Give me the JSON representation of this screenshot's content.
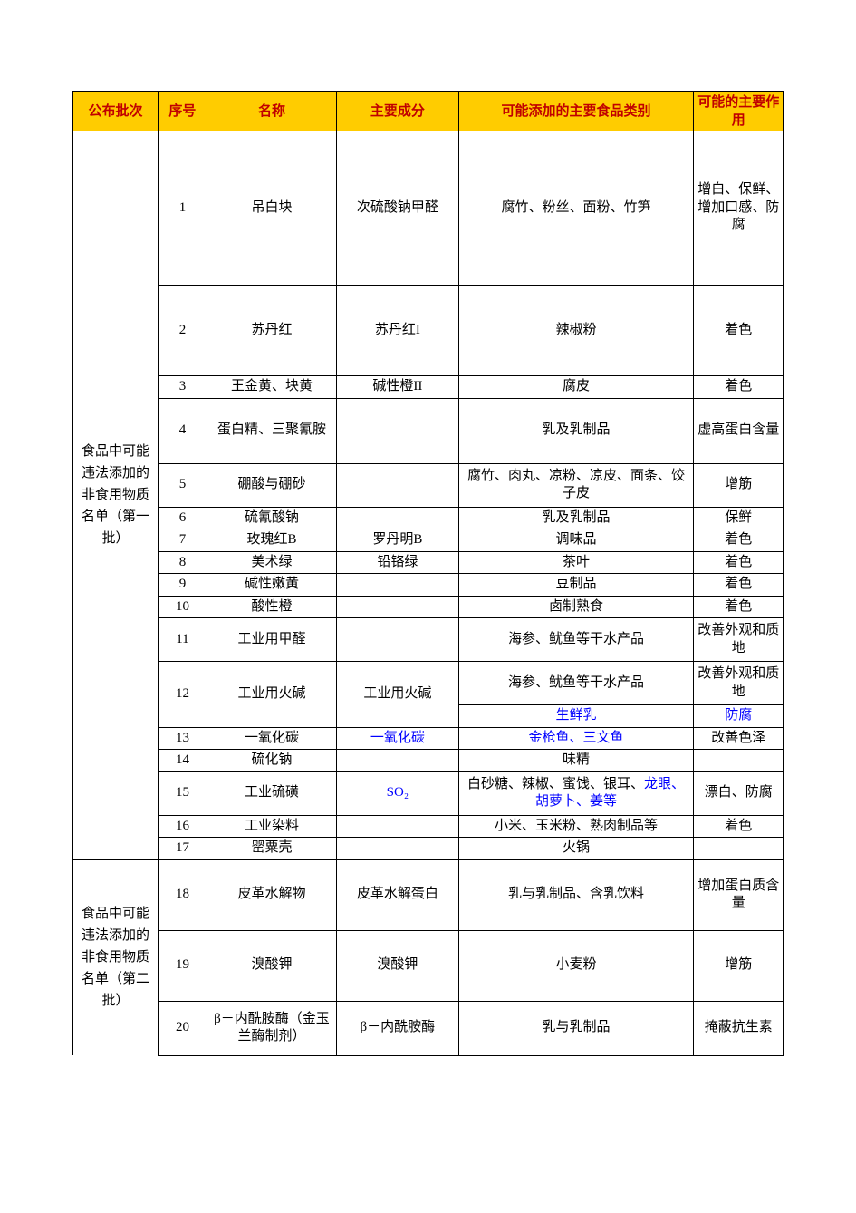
{
  "headers": {
    "batch": "公布批次",
    "num": "序号",
    "name": "名称",
    "component": "主要成分",
    "category": "可能添加的主要食品类别",
    "effect": "可能的主要作用"
  },
  "batch1_label": "食品中可能违法添加的非食用物质名单（第一批）",
  "batch2_label": "食品中可能违法添加的非食用物质名单（第二批）",
  "rows": {
    "r1": {
      "num": "1",
      "name": "吊白块",
      "comp": "次硫酸钠甲醛",
      "cat": "腐竹、粉丝、面粉、竹笋",
      "eff": "增白、保鲜、增加口感、防腐"
    },
    "r2": {
      "num": "2",
      "name": "苏丹红",
      "comp": "苏丹红I",
      "cat": "辣椒粉",
      "eff": "着色"
    },
    "r3": {
      "num": "3",
      "name": "王金黄、块黄",
      "comp": "碱性橙II",
      "cat": "腐皮",
      "eff": "着色"
    },
    "r4": {
      "num": "4",
      "name": "蛋白精、三聚氰胺",
      "comp": "",
      "cat": "乳及乳制品",
      "eff": "虚高蛋白含量"
    },
    "r5": {
      "num": "5",
      "name": "硼酸与硼砂",
      "comp": "",
      "cat": "腐竹、肉丸、凉粉、凉皮、面条、饺子皮",
      "eff": "增筋"
    },
    "r6": {
      "num": "6",
      "name": "硫氰酸钠",
      "comp": "",
      "cat": "乳及乳制品",
      "eff": "保鲜"
    },
    "r7": {
      "num": "7",
      "name": "玫瑰红B",
      "comp": "罗丹明B",
      "cat": "调味品",
      "eff": "着色"
    },
    "r8": {
      "num": "8",
      "name": "美术绿",
      "comp": "铅铬绿",
      "cat": "茶叶",
      "eff": "着色"
    },
    "r9": {
      "num": "9",
      "name": "碱性嫩黄",
      "comp": "",
      "cat": "豆制品",
      "eff": "着色"
    },
    "r10": {
      "num": "10",
      "name": "酸性橙",
      "comp": "",
      "cat": "卤制熟食",
      "eff": "着色"
    },
    "r11": {
      "num": "11",
      "name": "工业用甲醛",
      "comp": "",
      "cat": "海参、鱿鱼等干水产品",
      "eff": "改善外观和质地"
    },
    "r12a": {
      "num": "12",
      "name": "工业用火碱",
      "comp": "工业用火碱",
      "cat": "海参、鱿鱼等干水产品",
      "eff": "改善外观和质地"
    },
    "r12b": {
      "cat": "生鲜乳",
      "eff": "防腐"
    },
    "r13": {
      "num": "13",
      "name": "一氧化碳",
      "comp": "一氧化碳",
      "cat": "金枪鱼、三文鱼",
      "eff": "改善色泽"
    },
    "r14": {
      "num": "14",
      "name": "硫化钠",
      "comp": "",
      "cat": "味精",
      "eff": ""
    },
    "r15": {
      "num": "15",
      "name": "工业硫磺",
      "comp": "SO₂",
      "cat_a": "白砂糖、辣椒、蜜饯、银耳、",
      "cat_b": "龙眼、胡萝卜、姜等",
      "eff": "漂白、防腐"
    },
    "r16": {
      "num": "16",
      "name": "工业染料",
      "comp": "",
      "cat": "小米、玉米粉、熟肉制品等",
      "eff": "着色"
    },
    "r17": {
      "num": "17",
      "name": "罂粟壳",
      "comp": "",
      "cat": "火锅",
      "eff": ""
    },
    "r18": {
      "num": "18",
      "name": "皮革水解物",
      "comp": "皮革水解蛋白",
      "cat": "乳与乳制品、含乳饮料",
      "eff": "增加蛋白质含量"
    },
    "r19": {
      "num": "19",
      "name": "溴酸钾",
      "comp": "溴酸钾",
      "cat": "小麦粉",
      "eff": "增筋"
    },
    "r20": {
      "num": "20",
      "name": "β－内酰胺酶（金玉兰酶制剂）",
      "comp": "β－内酰胺酶",
      "cat": "乳与乳制品",
      "eff": "掩蔽抗生素"
    }
  }
}
